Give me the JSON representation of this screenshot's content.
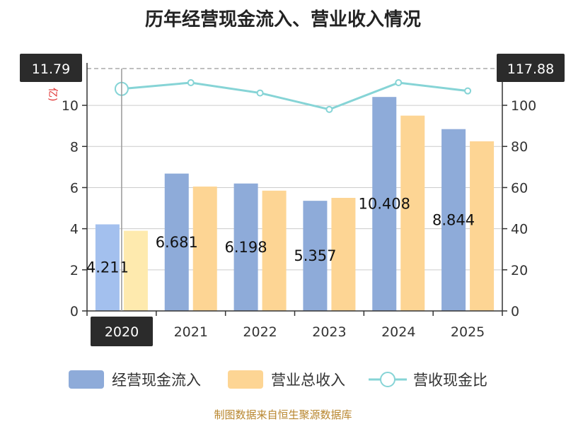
{
  "chart_data": {
    "type": "bar",
    "title": "历年经营现金流入、营业收入情况",
    "ylabel_left_fragment": "亿)",
    "categories": [
      "2020",
      "2021",
      "2022",
      "2023",
      "2024",
      "2025"
    ],
    "series": [
      {
        "name": "经营现金流入",
        "type": "bar",
        "axis": "left",
        "values": [
          4.211,
          6.681,
          6.198,
          5.357,
          10.408,
          8.844
        ]
      },
      {
        "name": "营业总收入",
        "type": "bar",
        "axis": "left",
        "values": [
          3.9,
          6.05,
          5.85,
          5.5,
          9.5,
          8.25
        ]
      },
      {
        "name": "营收现金比",
        "type": "line",
        "axis": "right",
        "values": [
          108,
          111,
          106,
          98,
          111,
          107
        ]
      }
    ],
    "bar_labels": [
      "4.211",
      "6.681",
      "6.198",
      "5.357",
      "10.408",
      "8.844"
    ],
    "y_left": {
      "min": 0,
      "max": 11.79,
      "ticks": [
        0,
        2,
        4,
        6,
        8,
        10
      ]
    },
    "y_right": {
      "min": 0,
      "max": 117.88,
      "ticks": [
        0,
        20,
        40,
        60,
        80,
        100
      ]
    },
    "crosshair": {
      "category": "2020",
      "left_value": "11.79",
      "right_value": "117.88"
    },
    "colors": {
      "cash_inflow": "#8eabd9",
      "cash_inflow_highlight": "#a3c0ee",
      "revenue": "#fdd594",
      "revenue_highlight": "#feeaae",
      "ratio_line": "#86d4d6",
      "axis": "#333333",
      "grid": "#cccccc",
      "tag_bg": "#2b2b2b"
    },
    "legend_position": "bottom",
    "grid": true
  },
  "footer": "制图数据来自恒生聚源数据库"
}
